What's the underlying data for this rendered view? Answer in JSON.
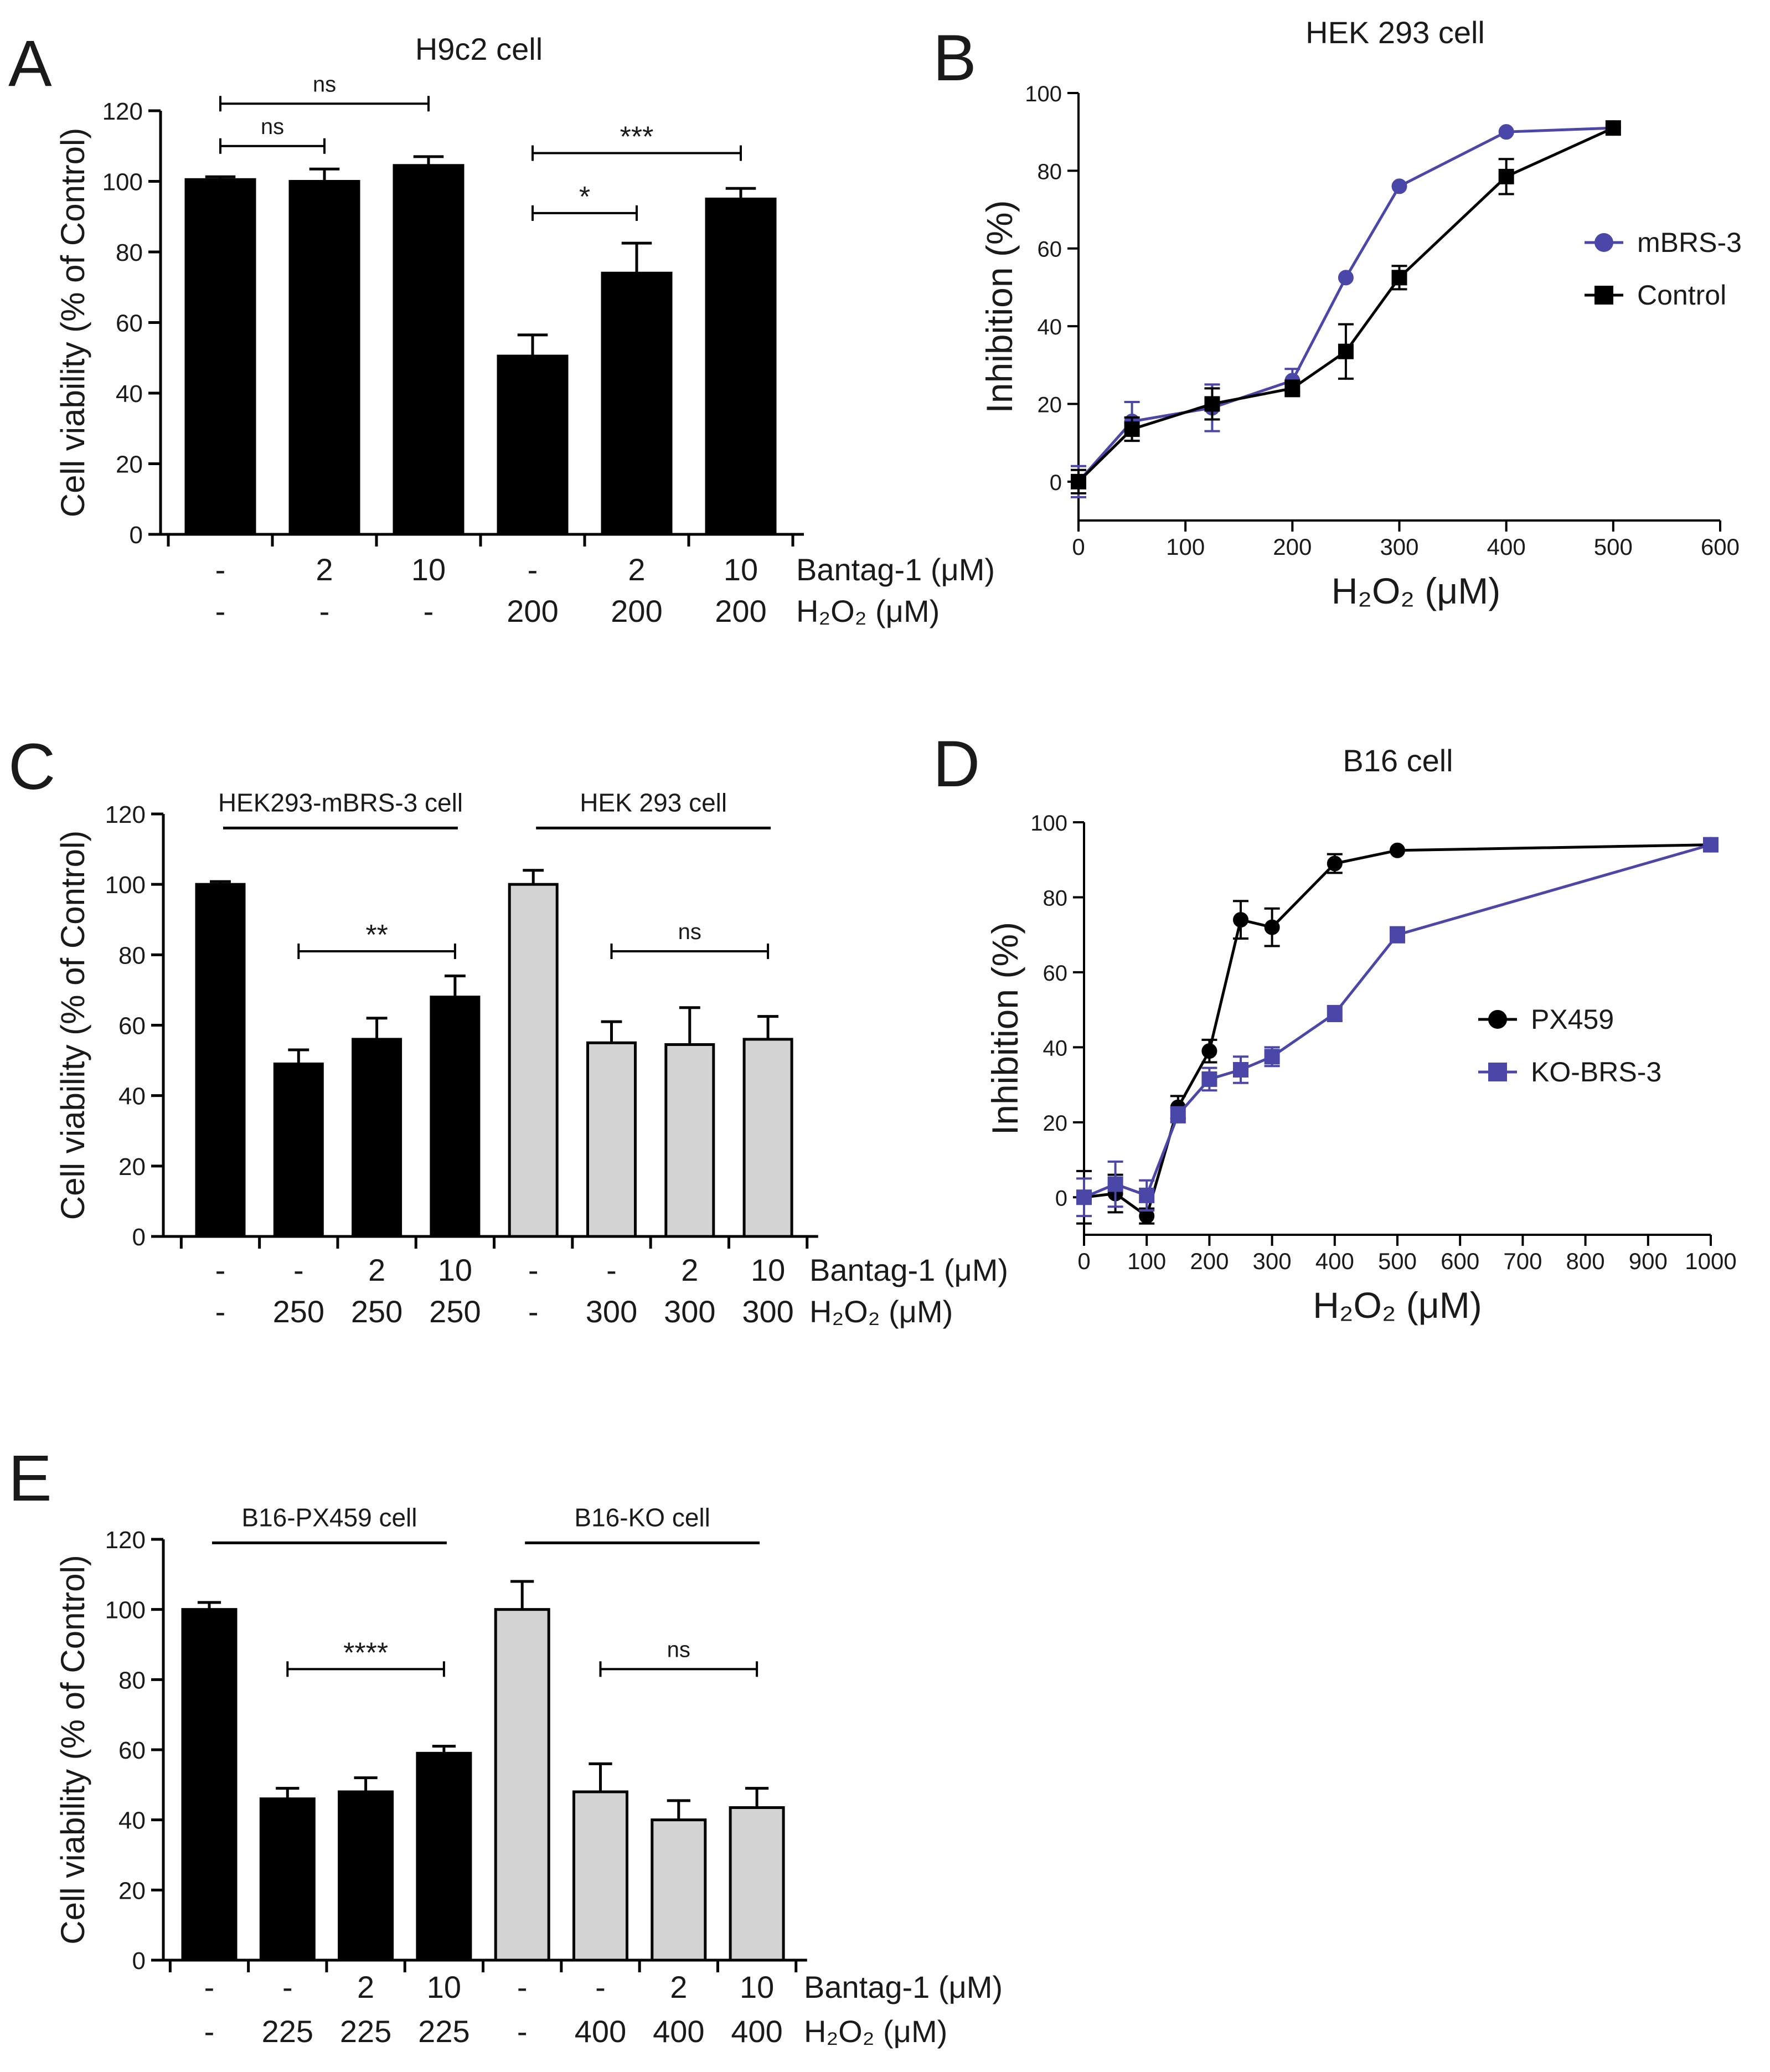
{
  "colors": {
    "black": "#000000",
    "gray": "#d3d3d3",
    "blue": "#4a47a8",
    "navy": "#1b2a8a"
  },
  "chart_data": [
    {
      "panel": "A",
      "type": "bar",
      "title": "H9c2 cell",
      "ylabel": "Cell viability (% of Control)",
      "ylim": [
        0,
        120
      ],
      "yticks": [
        "0",
        "20",
        "40",
        "60",
        "80",
        "100",
        "120"
      ],
      "row_labels": [
        "Bantag-1  (μM)",
        "H₂O₂ (μM)"
      ],
      "categories": [
        {
          "bantag": "-",
          "h2o2": "-"
        },
        {
          "bantag": "2",
          "h2o2": "-"
        },
        {
          "bantag": "10",
          "h2o2": "-"
        },
        {
          "bantag": "-",
          "h2o2": "200"
        },
        {
          "bantag": "2",
          "h2o2": "200"
        },
        {
          "bantag": "10",
          "h2o2": "200"
        }
      ],
      "values": [
        100.5,
        100,
        104.5,
        50.5,
        74,
        95
      ],
      "errors": [
        0.8,
        3.5,
        2.5,
        6,
        8.5,
        3
      ],
      "fills": [
        "black",
        "black",
        "black",
        "black",
        "black",
        "black"
      ],
      "brackets": [
        {
          "from": 0,
          "to": 2,
          "label": "ns",
          "level": 122
        },
        {
          "from": 0,
          "to": 1,
          "label": "ns",
          "level": 110
        },
        {
          "from": 3,
          "to": 5,
          "label": "***",
          "level": 108
        },
        {
          "from": 3,
          "to": 4,
          "label": "*",
          "level": 91
        }
      ],
      "group_labels": []
    },
    {
      "panel": "B",
      "type": "line",
      "title": "HEK 293 cell",
      "xlabel": "H₂O₂ (μM)",
      "ylabel": "Inhibition (%)",
      "xlim": [
        0,
        600
      ],
      "ylim": [
        -10,
        100
      ],
      "xticks": [
        "0",
        "100",
        "200",
        "300",
        "400",
        "500",
        "600"
      ],
      "yticks": [
        "0",
        "20",
        "40",
        "60",
        "80",
        "100"
      ],
      "legend_position": "right",
      "series": [
        {
          "name": "mBRS-3",
          "color": "blue",
          "marker": "circle",
          "x": [
            0,
            50,
            125,
            200,
            250,
            300,
            400,
            500
          ],
          "y": [
            0,
            15.5,
            19,
            26,
            52.5,
            76,
            90,
            91
          ],
          "err": [
            4,
            5,
            6,
            3,
            0,
            0,
            0,
            0
          ]
        },
        {
          "name": "Control",
          "color": "black",
          "marker": "square",
          "x": [
            0,
            50,
            125,
            200,
            250,
            300,
            400,
            500
          ],
          "y": [
            0,
            13.5,
            20,
            24,
            33.5,
            52.5,
            78.5,
            91
          ],
          "err": [
            3,
            3,
            4,
            2,
            7,
            3,
            4.5,
            0
          ]
        }
      ]
    },
    {
      "panel": "C",
      "type": "bar",
      "title": "",
      "ylabel": "Cell viability (% of Control)",
      "ylim": [
        0,
        120
      ],
      "yticks": [
        "0",
        "20",
        "40",
        "60",
        "80",
        "100",
        "120"
      ],
      "row_labels": [
        "Bantag-1 (μM)",
        "H₂O₂ (μM)"
      ],
      "categories": [
        {
          "bantag": "-",
          "h2o2": "-"
        },
        {
          "bantag": "-",
          "h2o2": "250"
        },
        {
          "bantag": "2",
          "h2o2": "250"
        },
        {
          "bantag": "10",
          "h2o2": "250"
        },
        {
          "bantag": "-",
          "h2o2": "-"
        },
        {
          "bantag": "-",
          "h2o2": "300"
        },
        {
          "bantag": "2",
          "h2o2": "300"
        },
        {
          "bantag": "10",
          "h2o2": "300"
        }
      ],
      "values": [
        100,
        49,
        56,
        68,
        100,
        55,
        54.5,
        56
      ],
      "errors": [
        0.8,
        4,
        6,
        6,
        4,
        6,
        10.5,
        6.5
      ],
      "fills": [
        "black",
        "black",
        "black",
        "black",
        "gray",
        "gray",
        "gray",
        "gray"
      ],
      "brackets": [
        {
          "from": 1,
          "to": 3,
          "label": "**",
          "level": 81
        },
        {
          "from": 5,
          "to": 7,
          "label": "ns",
          "level": 81
        }
      ],
      "group_labels": [
        {
          "from": 0,
          "to": 3,
          "label": "HEK293-mBRS-3 cell",
          "level": 116
        },
        {
          "from": 4,
          "to": 7,
          "label": "HEK 293  cell",
          "level": 116
        }
      ]
    },
    {
      "panel": "D",
      "type": "line",
      "title": "B16 cell",
      "xlabel": "H₂O₂ (μM)",
      "ylabel": "Inhibition (%)",
      "xlim": [
        0,
        1000
      ],
      "ylim": [
        -10,
        100
      ],
      "xticks": [
        "0",
        "100",
        "200",
        "300",
        "400",
        "500",
        "600",
        "700",
        "800",
        "900",
        "1000"
      ],
      "yticks": [
        "0",
        "20",
        "40",
        "60",
        "80",
        "100"
      ],
      "legend_position": "right",
      "series": [
        {
          "name": "PX459",
          "color": "black",
          "marker": "circle",
          "x": [
            0,
            50,
            100,
            150,
            200,
            250,
            300,
            400,
            500,
            1000
          ],
          "y": [
            0,
            1,
            -5,
            24,
            39,
            74,
            72,
            89,
            92.5,
            94
          ],
          "err": [
            7,
            5,
            2,
            3,
            3,
            5,
            5,
            2.5,
            0,
            0
          ]
        },
        {
          "name": "KO-BRS-3",
          "color": "blue",
          "marker": "square",
          "x": [
            0,
            50,
            100,
            150,
            200,
            250,
            300,
            400,
            500,
            1000
          ],
          "y": [
            0,
            3.5,
            0.5,
            22,
            31.5,
            34,
            37.5,
            49,
            70,
            94
          ],
          "err": [
            5,
            6,
            4,
            2,
            3,
            3.5,
            2.5,
            2,
            2,
            1
          ]
        }
      ]
    },
    {
      "panel": "E",
      "type": "bar",
      "title": "",
      "ylabel": "Cell viability (% of Control)",
      "ylim": [
        0,
        120
      ],
      "yticks": [
        "0",
        "20",
        "40",
        "60",
        "80",
        "100",
        "120"
      ],
      "row_labels": [
        "Bantag-1 (μM)",
        "H₂O₂ (μM)"
      ],
      "categories": [
        {
          "bantag": "-",
          "h2o2": "-"
        },
        {
          "bantag": "-",
          "h2o2": "225"
        },
        {
          "bantag": "2",
          "h2o2": "225"
        },
        {
          "bantag": "10",
          "h2o2": "225"
        },
        {
          "bantag": "-",
          "h2o2": "-"
        },
        {
          "bantag": "-",
          "h2o2": "400"
        },
        {
          "bantag": "2",
          "h2o2": "400"
        },
        {
          "bantag": "10",
          "h2o2": "400"
        }
      ],
      "values": [
        100,
        46,
        48,
        59,
        100,
        48,
        40,
        43.5
      ],
      "errors": [
        2,
        3,
        4,
        2,
        8,
        8,
        5.5,
        5.5
      ],
      "fills": [
        "black",
        "black",
        "black",
        "black",
        "gray",
        "gray",
        "gray",
        "gray"
      ],
      "brackets": [
        {
          "from": 1,
          "to": 3,
          "label": "****",
          "level": 83
        },
        {
          "from": 5,
          "to": 7,
          "label": "ns",
          "level": 83
        }
      ],
      "group_labels": [
        {
          "from": 0,
          "to": 3,
          "label": "B16-PX459 cell",
          "level": 119
        },
        {
          "from": 4,
          "to": 7,
          "label": "B16-KO cell",
          "level": 119
        }
      ]
    }
  ]
}
